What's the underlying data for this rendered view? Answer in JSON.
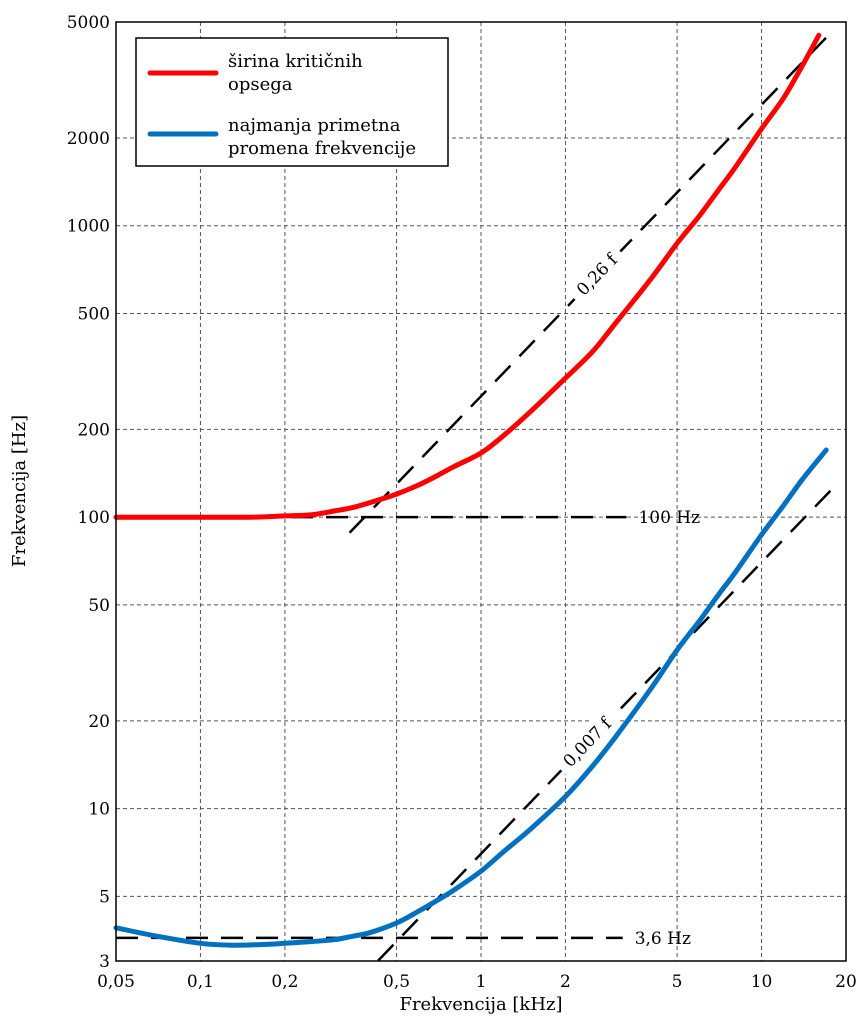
{
  "chart_data": {
    "type": "line",
    "title": "",
    "xlabel": "Frekvencija [kHz]",
    "ylabel": "Frekvencija [Hz]",
    "x_scale": "log",
    "y_scale": "log",
    "xlim": [
      0.05,
      20
    ],
    "ylim": [
      3,
      5000
    ],
    "grid": true,
    "legend_position": "top-left",
    "x_ticks": [
      {
        "value": 0.05,
        "label": "0,05"
      },
      {
        "value": 0.1,
        "label": "0,1"
      },
      {
        "value": 0.2,
        "label": "0,2"
      },
      {
        "value": 0.5,
        "label": "0,5"
      },
      {
        "value": 1,
        "label": "1"
      },
      {
        "value": 2,
        "label": "2"
      },
      {
        "value": 5,
        "label": "5"
      },
      {
        "value": 10,
        "label": "10"
      },
      {
        "value": 20,
        "label": "20"
      }
    ],
    "y_ticks": [
      {
        "value": 3,
        "label": "3"
      },
      {
        "value": 5,
        "label": "5"
      },
      {
        "value": 10,
        "label": "10"
      },
      {
        "value": 20,
        "label": "20"
      },
      {
        "value": 50,
        "label": "50"
      },
      {
        "value": 100,
        "label": "100"
      },
      {
        "value": 200,
        "label": "200"
      },
      {
        "value": 500,
        "label": "500"
      },
      {
        "value": 1000,
        "label": "1000"
      },
      {
        "value": 2000,
        "label": "2000"
      },
      {
        "value": 5000,
        "label": "5000"
      }
    ],
    "series": [
      {
        "name": "širina kritičnih opsega",
        "legend_lines": [
          "širina kritičnih",
          "opsega"
        ],
        "color": "#ff0000",
        "x": [
          0.05,
          0.1,
          0.15,
          0.2,
          0.25,
          0.3,
          0.35,
          0.4,
          0.5,
          0.6,
          0.7,
          0.8,
          1.0,
          1.2,
          1.5,
          2.0,
          2.5,
          3.0,
          4.0,
          5.0,
          6.0,
          7.0,
          8.0,
          10.0,
          12.0,
          14.0,
          16.0
        ],
        "y": [
          100,
          100,
          100,
          101,
          102,
          105,
          108,
          112,
          120,
          129,
          139,
          149,
          166,
          190,
          230,
          300,
          370,
          460,
          650,
          870,
          1080,
          1320,
          1570,
          2150,
          2750,
          3550,
          4500
        ]
      },
      {
        "name": "najmanja primetna promena frekvencije",
        "legend_lines": [
          "najmanja primetna",
          "promena frekvencije"
        ],
        "color": "#0070c0",
        "x": [
          0.05,
          0.07,
          0.1,
          0.13,
          0.17,
          0.2,
          0.25,
          0.3,
          0.35,
          0.4,
          0.5,
          0.6,
          0.7,
          0.8,
          1.0,
          1.2,
          1.5,
          2.0,
          2.5,
          3.0,
          4.0,
          5.0,
          6.0,
          7.0,
          8.0,
          10.0,
          12.0,
          14.0,
          17.0
        ],
        "y": [
          3.9,
          3.65,
          3.45,
          3.4,
          3.42,
          3.45,
          3.5,
          3.55,
          3.65,
          3.75,
          4.05,
          4.45,
          4.85,
          5.25,
          6.1,
          7.1,
          8.5,
          11.0,
          14.0,
          17.5,
          25.5,
          35.0,
          44.0,
          54.0,
          64.0,
          87.0,
          110.0,
          135.0,
          170.0
        ]
      }
    ],
    "reference_lines": [
      {
        "label": "100 Hz",
        "kind": "constant",
        "y": 100,
        "x_range": [
          0.05,
          3.3
        ]
      },
      {
        "label": "3,6 Hz",
        "kind": "constant",
        "y": 3.6,
        "x_range": [
          0.05,
          3.2
        ]
      },
      {
        "label": "0,26 f",
        "kind": "proportional",
        "coefficient_hz_per_khz": 260,
        "x_range": [
          0.34,
          18.0
        ]
      },
      {
        "label": "0,007 f",
        "kind": "proportional",
        "coefficient_hz_per_khz": 7,
        "x_range": [
          0.43,
          18.0
        ]
      }
    ]
  }
}
